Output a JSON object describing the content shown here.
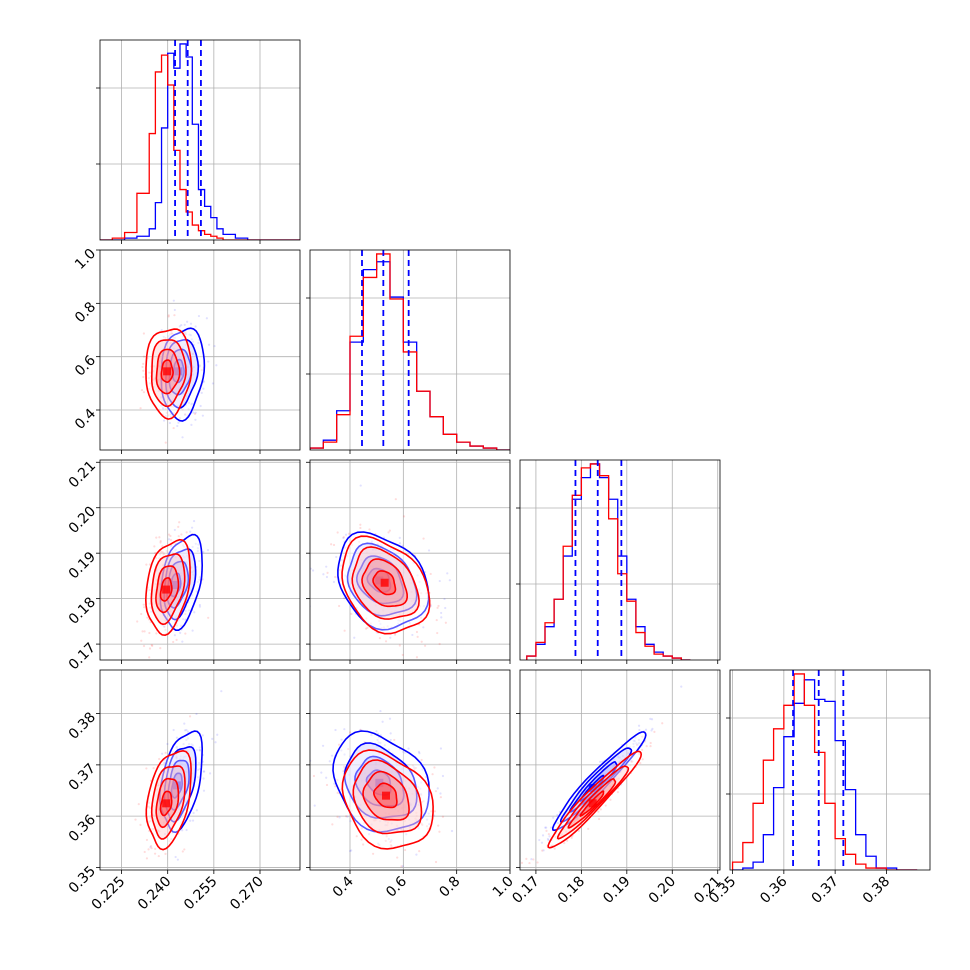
{
  "chart_data": {
    "type": "corner",
    "grid": true,
    "series": [
      {
        "color": "#0000ff",
        "stats": [
          [
            0.2424,
            0.2465,
            0.2508
          ],
          [
            0.445,
            0.525,
            0.62
          ],
          [
            0.1787,
            0.1836,
            0.1888
          ],
          [
            0.3618,
            0.3668,
            0.3716
          ]
        ]
      },
      {
        "color": "#ff0000"
      }
    ],
    "params": [
      {
        "range": [
          0.218,
          0.283
        ],
        "ticks": [
          "0.225",
          "0.240",
          "0.255",
          "0.270"
        ],
        "tick_values": [
          0.225,
          0.24,
          0.255,
          0.27
        ]
      },
      {
        "range": [
          0.25,
          1.0
        ],
        "ticks": [
          "0.4",
          "0.6",
          "0.8",
          "1.0"
        ],
        "tick_values": [
          0.4,
          0.6,
          0.8,
          1.0
        ]
      },
      {
        "range": [
          0.1665,
          0.2105
        ],
        "ticks": [
          "0.17",
          "0.18",
          "0.19",
          "0.20",
          "0.21"
        ],
        "tick_values": [
          0.17,
          0.18,
          0.19,
          0.2,
          0.21
        ]
      },
      {
        "range": [
          0.3495,
          0.3885
        ],
        "ticks": [
          "0.35",
          "0.36",
          "0.37",
          "0.38"
        ],
        "tick_values": [
          0.35,
          0.36,
          0.37,
          0.38
        ]
      }
    ],
    "histograms": [
      {
        "edges": [
          0.218,
          0.222,
          0.226,
          0.23,
          0.234,
          0.236,
          0.238,
          0.24,
          0.242,
          0.244,
          0.246,
          0.248,
          0.25,
          0.252,
          0.254,
          0.256,
          0.258,
          0.262,
          0.266,
          0.272,
          0.283
        ],
        "blue": [
          0,
          0,
          0.01,
          0.02,
          0.06,
          0.2,
          0.6,
          1.0,
          0.92,
          1.05,
          0.98,
          0.62,
          0.27,
          0.18,
          0.12,
          0.06,
          0.03,
          0.01,
          0,
          0
        ],
        "red": [
          0,
          0.01,
          0.04,
          0.25,
          0.57,
          0.9,
          0.99,
          0.83,
          0.48,
          0.27,
          0.15,
          0.08,
          0.05,
          0.03,
          0.02,
          0.01,
          0,
          0,
          0,
          0
        ]
      },
      {
        "edges": [
          0.25,
          0.3,
          0.35,
          0.4,
          0.45,
          0.5,
          0.55,
          0.6,
          0.65,
          0.7,
          0.75,
          0.8,
          0.85,
          0.9,
          0.95,
          1.0
        ],
        "blue": [
          0.01,
          0.05,
          0.2,
          0.55,
          0.92,
          0.96,
          0.78,
          0.55,
          0.3,
          0.17,
          0.08,
          0.04,
          0.02,
          0.01,
          0
        ],
        "red": [
          0.01,
          0.04,
          0.18,
          0.58,
          0.88,
          1.0,
          0.77,
          0.5,
          0.3,
          0.17,
          0.08,
          0.04,
          0.02,
          0.01,
          0
        ]
      },
      {
        "edges": [
          0.168,
          0.17,
          0.172,
          0.174,
          0.176,
          0.178,
          0.18,
          0.182,
          0.184,
          0.186,
          0.188,
          0.19,
          0.192,
          0.194,
          0.196,
          0.198,
          0.2,
          0.202,
          0.204
        ],
        "blue": [
          0.02,
          0.08,
          0.17,
          0.31,
          0.53,
          0.82,
          0.93,
          1.0,
          0.93,
          0.82,
          0.53,
          0.31,
          0.17,
          0.08,
          0.04,
          0.02,
          0.01,
          0
        ],
        "red": [
          0.02,
          0.09,
          0.19,
          0.31,
          0.58,
          0.84,
          0.98,
          1.0,
          0.94,
          0.72,
          0.44,
          0.3,
          0.14,
          0.07,
          0.03,
          0.02,
          0.01,
          0
        ]
      },
      {
        "edges": [
          0.35,
          0.352,
          0.354,
          0.356,
          0.358,
          0.36,
          0.362,
          0.364,
          0.366,
          0.368,
          0.37,
          0.372,
          0.374,
          0.376,
          0.378,
          0.38,
          0.382,
          0.386
        ],
        "blue": [
          0,
          0.01,
          0.04,
          0.18,
          0.42,
          0.68,
          0.85,
          0.97,
          0.87,
          0.86,
          0.66,
          0.41,
          0.18,
          0.07,
          0.01,
          0.01,
          0
        ],
        "red": [
          0.04,
          0.14,
          0.34,
          0.56,
          0.72,
          0.84,
          1.0,
          0.84,
          0.6,
          0.34,
          0.16,
          0.08,
          0.03,
          0.01,
          0.01,
          0,
          0
        ]
      }
    ],
    "pairs": [
      {
        "i": 1,
        "j": 0,
        "blue": {
          "center": [
            0.2448,
            0.54
          ],
          "sd": [
            0.0035,
            0.085
          ],
          "rho": 0.15,
          "core": [
            0.2435,
            0.545
          ]
        },
        "red": {
          "center": [
            0.2402,
            0.545
          ],
          "sd": [
            0.0037,
            0.083
          ],
          "rho": 0.05,
          "core": [
            0.2398,
            0.545
          ]
        }
      },
      {
        "i": 2,
        "j": 0,
        "blue": {
          "center": [
            0.2445,
            0.1838
          ],
          "sd": [
            0.0034,
            0.0051
          ],
          "rho": 0.35,
          "core": [
            0.2425,
            0.183
          ]
        },
        "red": {
          "center": [
            0.2402,
            0.1828
          ],
          "sd": [
            0.0036,
            0.0051
          ],
          "rho": 0.3,
          "core": [
            0.2395,
            0.182
          ]
        }
      },
      {
        "i": 2,
        "j": 1,
        "blue": {
          "center": [
            0.52,
            0.1838
          ],
          "sd": [
            0.085,
            0.0052
          ],
          "rho": -0.25,
          "core": [
            0.51,
            0.184
          ]
        },
        "red": {
          "center": [
            0.53,
            0.1828
          ],
          "sd": [
            0.082,
            0.0052
          ],
          "rho": -0.3,
          "core": [
            0.53,
            0.1835
          ]
        }
      },
      {
        "i": 3,
        "j": 0,
        "blue": {
          "center": [
            0.2445,
            0.367
          ],
          "sd": [
            0.0034,
            0.0048
          ],
          "rho": 0.4,
          "core": [
            0.243,
            0.366
          ]
        },
        "red": {
          "center": [
            0.2405,
            0.3635
          ],
          "sd": [
            0.0036,
            0.0047
          ],
          "rho": 0.35,
          "core": [
            0.2395,
            0.3625
          ]
        }
      },
      {
        "i": 3,
        "j": 1,
        "blue": {
          "center": [
            0.515,
            0.3665
          ],
          "sd": [
            0.09,
            0.0048
          ],
          "rho": -0.25,
          "core": [
            0.51,
            0.3665
          ]
        },
        "red": {
          "center": [
            0.54,
            0.363
          ],
          "sd": [
            0.085,
            0.0047
          ],
          "rho": -0.25,
          "core": [
            0.535,
            0.364
          ]
        }
      },
      {
        "i": 3,
        "j": 2,
        "blue": {
          "center": [
            0.1838,
            0.3668
          ],
          "sd": [
            0.0051,
            0.0048
          ],
          "rho": 0.96,
          "core": [
            0.1825,
            0.3655
          ]
        },
        "red": {
          "center": [
            0.1828,
            0.3632
          ],
          "sd": [
            0.0051,
            0.0047
          ],
          "rho": 0.96,
          "core": [
            0.1825,
            0.3625
          ]
        }
      }
    ]
  }
}
